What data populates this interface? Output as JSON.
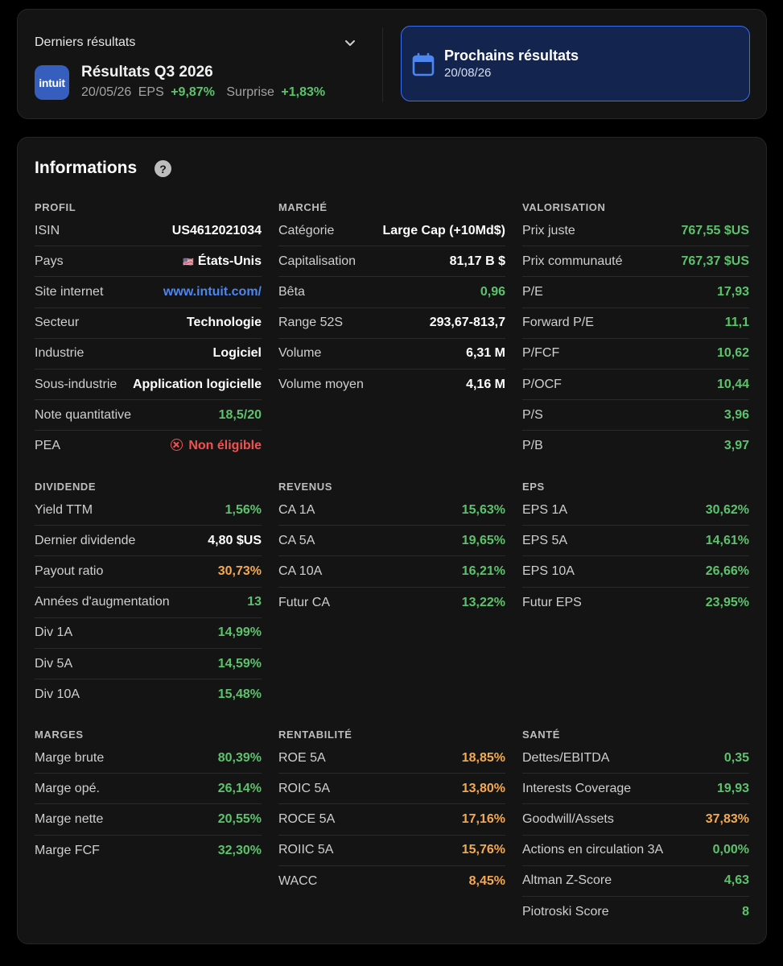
{
  "last_results": {
    "label": "Derniers résultats",
    "logo_text": "intuit",
    "title": "Résultats Q3 2026",
    "date": "20/05/26",
    "eps_label": "EPS",
    "eps_value": "+9,87%",
    "surprise_label": "Surprise",
    "surprise_value": "+1,83%"
  },
  "next_results": {
    "title": "Prochains résultats",
    "date": "20/08/26"
  },
  "info": {
    "title": "Informations",
    "help": "?"
  },
  "sections": {
    "profil": {
      "title": "PROFIL",
      "rows": [
        {
          "label": "ISIN",
          "value": "US4612021034",
          "color": "white"
        },
        {
          "label": "Pays",
          "value": "États-Unis",
          "color": "white",
          "flag": "🇺🇸"
        },
        {
          "label": "Site internet",
          "value": "www.intuit.com/",
          "color": "blue"
        },
        {
          "label": "Secteur",
          "value": "Technologie",
          "color": "white"
        },
        {
          "label": "Industrie",
          "value": "Logiciel",
          "color": "white"
        },
        {
          "label": "Sous-industrie",
          "value": "Application logicielle",
          "color": "white"
        },
        {
          "label": "Note quantitative",
          "value": "18,5/20",
          "color": "green"
        },
        {
          "label": "PEA",
          "value": "Non éligible",
          "color": "red",
          "icon": "x-circle-icon"
        }
      ]
    },
    "marche": {
      "title": "MARCHÉ",
      "rows": [
        {
          "label": "Catégorie",
          "value": "Large Cap (+10Md$)",
          "color": "white"
        },
        {
          "label": "Capitalisation",
          "value": "81,17 B $",
          "color": "white"
        },
        {
          "label": "Bêta",
          "value": "0,96",
          "color": "green"
        },
        {
          "label": "Range 52S",
          "value": "293,67-813,7",
          "color": "white"
        },
        {
          "label": "Volume",
          "value": "6,31 M",
          "color": "white"
        },
        {
          "label": "Volume moyen",
          "value": "4,16 M",
          "color": "white"
        }
      ]
    },
    "valorisation": {
      "title": "VALORISATION",
      "rows": [
        {
          "label": "Prix juste",
          "value": "767,55 $US",
          "color": "green"
        },
        {
          "label": "Prix communauté",
          "value": "767,37 $US",
          "color": "green"
        },
        {
          "label": "P/E",
          "value": "17,93",
          "color": "green"
        },
        {
          "label": "Forward P/E",
          "value": "11,1",
          "color": "green"
        },
        {
          "label": "P/FCF",
          "value": "10,62",
          "color": "green"
        },
        {
          "label": "P/OCF",
          "value": "10,44",
          "color": "green"
        },
        {
          "label": "P/S",
          "value": "3,96",
          "color": "green"
        },
        {
          "label": "P/B",
          "value": "3,97",
          "color": "green"
        }
      ]
    },
    "dividende": {
      "title": "DIVIDENDE",
      "rows": [
        {
          "label": "Yield TTM",
          "value": "1,56%",
          "color": "green"
        },
        {
          "label": "Dernier dividende",
          "value": "4,80 $US",
          "color": "white"
        },
        {
          "label": "Payout ratio",
          "value": "30,73%",
          "color": "orange"
        },
        {
          "label": "Années d'augmentation",
          "value": "13",
          "color": "green"
        },
        {
          "label": "Div 1A",
          "value": "14,99%",
          "color": "green"
        },
        {
          "label": "Div 5A",
          "value": "14,59%",
          "color": "green"
        },
        {
          "label": "Div 10A",
          "value": "15,48%",
          "color": "green"
        }
      ]
    },
    "revenus": {
      "title": "REVENUS",
      "rows": [
        {
          "label": "CA 1A",
          "value": "15,63%",
          "color": "green"
        },
        {
          "label": "CA 5A",
          "value": "19,65%",
          "color": "green"
        },
        {
          "label": "CA 10A",
          "value": "16,21%",
          "color": "green"
        },
        {
          "label": "Futur CA",
          "value": "13,22%",
          "color": "green"
        }
      ]
    },
    "eps": {
      "title": "EPS",
      "rows": [
        {
          "label": "EPS 1A",
          "value": "30,62%",
          "color": "green"
        },
        {
          "label": "EPS 5A",
          "value": "14,61%",
          "color": "green"
        },
        {
          "label": "EPS 10A",
          "value": "26,66%",
          "color": "green"
        },
        {
          "label": "Futur EPS",
          "value": "23,95%",
          "color": "green"
        }
      ]
    },
    "marges": {
      "title": "MARGES",
      "rows": [
        {
          "label": "Marge brute",
          "value": "80,39%",
          "color": "green"
        },
        {
          "label": "Marge opé.",
          "value": "26,14%",
          "color": "green"
        },
        {
          "label": "Marge nette",
          "value": "20,55%",
          "color": "green"
        },
        {
          "label": "Marge FCF",
          "value": "32,30%",
          "color": "green"
        }
      ]
    },
    "rentabilite": {
      "title": "RENTABILITÉ",
      "rows": [
        {
          "label": "ROE 5A",
          "value": "18,85%",
          "color": "orange"
        },
        {
          "label": "ROIC 5A",
          "value": "13,80%",
          "color": "orange"
        },
        {
          "label": "ROCE 5A",
          "value": "17,16%",
          "color": "orange"
        },
        {
          "label": "ROIIC 5A",
          "value": "15,76%",
          "color": "orange"
        },
        {
          "label": "WACC",
          "value": "8,45%",
          "color": "orange"
        }
      ]
    },
    "sante": {
      "title": "SANTÉ",
      "rows": [
        {
          "label": "Dettes/EBITDA",
          "value": "0,35",
          "color": "green"
        },
        {
          "label": "Interests Coverage",
          "value": "19,93",
          "color": "green"
        },
        {
          "label": "Goodwill/Assets",
          "value": "37,83%",
          "color": "orange"
        },
        {
          "label": "Actions en circulation 3A",
          "value": "0,00%",
          "color": "green"
        },
        {
          "label": "Altman Z-Score",
          "value": "4,63",
          "color": "green"
        },
        {
          "label": "Piotroski Score",
          "value": "8",
          "color": "green"
        }
      ]
    }
  }
}
